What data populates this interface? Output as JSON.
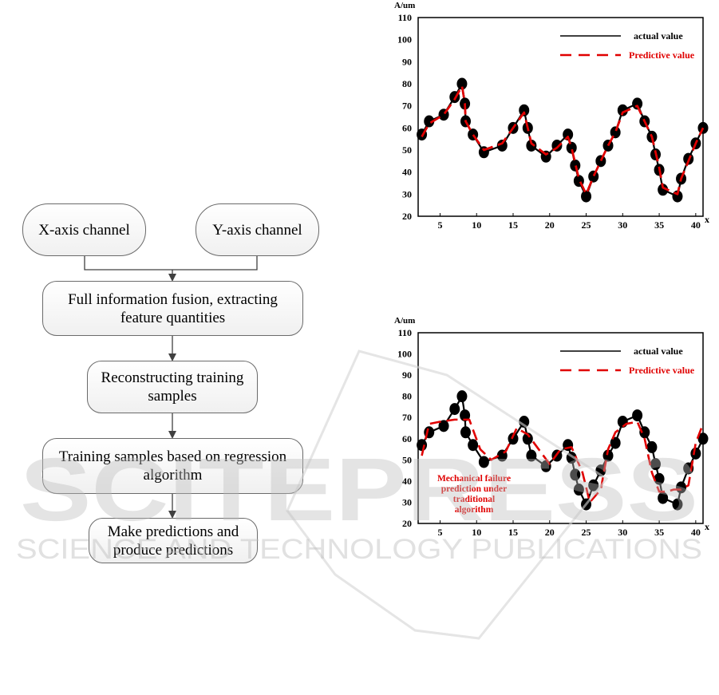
{
  "flowchart": {
    "x_channel": "X-axis channel",
    "y_channel": "Y-axis channel",
    "step1": "Full information fusion, extracting feature quantities",
    "step2": "Reconstructing training samples",
    "step3": "Training samples based on regression algorithm",
    "step4": "Make predictions and produce predictions"
  },
  "watermark": {
    "line1": "SCITEPRESS",
    "line2": "SCIENCE AND TECHNOLOGY PUBLICATIONS"
  },
  "chart_data": [
    {
      "type": "line",
      "ylabel": "A/um",
      "xlabel": "x",
      "xlim": [
        2,
        41
      ],
      "ylim": [
        20,
        110
      ],
      "x_ticks": [
        5,
        10,
        15,
        20,
        25,
        30,
        35,
        40
      ],
      "y_ticks": [
        20,
        30,
        40,
        50,
        60,
        70,
        80,
        90,
        100,
        110
      ],
      "legend": [
        "actual value",
        "Predictive value"
      ],
      "series": [
        {
          "name": "actual value",
          "color": "#000000",
          "style": "solid",
          "markers": true,
          "x": [
            2.5,
            3.5,
            5.5,
            7,
            8,
            8.4,
            8.5,
            9.5,
            11,
            13.5,
            15,
            16.5,
            17,
            17.5,
            19.5,
            21,
            22.5,
            23,
            23.5,
            24,
            25,
            26,
            27,
            28,
            29,
            30,
            32,
            33,
            34,
            34.5,
            35,
            35.5,
            37.5,
            38,
            39,
            40,
            41
          ],
          "y": [
            57,
            63,
            66,
            74,
            80,
            71,
            63,
            57,
            49,
            52,
            60,
            68,
            60,
            52,
            47,
            52,
            57,
            51,
            43,
            36,
            29,
            38,
            45,
            52,
            58,
            68,
            71,
            63,
            56,
            48,
            41,
            32,
            29,
            37,
            46,
            53,
            60
          ]
        },
        {
          "name": "Predictive value",
          "color": "#e00000",
          "style": "dashed",
          "x": [
            2.5,
            3.5,
            5.5,
            7,
            8,
            8.4,
            8.5,
            9.5,
            11,
            13.5,
            15,
            16.5,
            17,
            17.5,
            19.5,
            21,
            22.5,
            23,
            23.5,
            24,
            25,
            26,
            27,
            28,
            29,
            30,
            32,
            33,
            34,
            34.5,
            35,
            35.5,
            37.5,
            38,
            39,
            40,
            41
          ],
          "y": [
            56,
            62,
            66,
            73,
            79,
            71,
            63,
            57,
            50,
            53,
            60,
            67,
            60,
            53,
            48,
            51,
            56,
            51,
            44,
            37,
            30,
            38,
            45,
            52,
            58,
            67,
            70,
            63,
            56,
            49,
            42,
            33,
            30,
            37,
            45,
            53,
            60
          ]
        }
      ]
    },
    {
      "type": "line",
      "ylabel": "A/um",
      "xlabel": "x",
      "xlim": [
        2,
        41
      ],
      "ylim": [
        20,
        110
      ],
      "x_ticks": [
        5,
        10,
        15,
        20,
        25,
        30,
        35,
        40
      ],
      "y_ticks": [
        20,
        30,
        40,
        50,
        60,
        70,
        80,
        90,
        100,
        110
      ],
      "legend": [
        "actual value",
        "Predictive value"
      ],
      "annotation": "Mechanical failure prediction under traditional algorithm",
      "series": [
        {
          "name": "actual value",
          "color": "#000000",
          "style": "solid",
          "markers": true,
          "x": [
            2.5,
            3.5,
            5.5,
            7,
            8,
            8.4,
            8.5,
            9.5,
            11,
            13.5,
            15,
            16.5,
            17,
            17.5,
            19.5,
            21,
            22.5,
            23,
            23.5,
            24,
            25,
            26,
            27,
            28,
            29,
            30,
            32,
            33,
            34,
            34.5,
            35,
            35.5,
            37.5,
            38,
            39,
            40,
            41
          ],
          "y": [
            57,
            63,
            66,
            74,
            80,
            71,
            63,
            57,
            49,
            52,
            60,
            68,
            60,
            52,
            47,
            52,
            57,
            51,
            43,
            36,
            29,
            38,
            45,
            52,
            58,
            68,
            71,
            63,
            56,
            48,
            41,
            32,
            29,
            37,
            46,
            53,
            60
          ]
        },
        {
          "name": "Predictive value",
          "color": "#e00000",
          "style": "dashed",
          "x": [
            2.5,
            3.5,
            5,
            7,
            9,
            10.5,
            12,
            14,
            15.5,
            17,
            18.5,
            20,
            21.5,
            23,
            24.5,
            25.5,
            27,
            28,
            29,
            30.5,
            32,
            33,
            34,
            35,
            36,
            37,
            38,
            39,
            40,
            41
          ],
          "y": [
            52,
            67,
            68,
            69,
            69,
            55,
            50,
            54,
            65,
            62,
            55,
            48,
            55,
            56,
            44,
            30,
            36,
            55,
            63,
            67,
            68,
            60,
            44,
            35,
            35,
            36,
            36,
            38,
            58,
            67
          ]
        }
      ]
    }
  ]
}
